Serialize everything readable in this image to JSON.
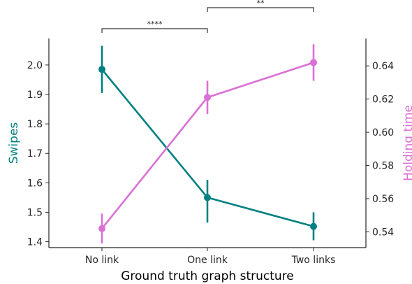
{
  "chart_data": {
    "type": "line",
    "xlabel": "Ground truth graph structure",
    "categories": [
      "No link",
      "One link",
      "Two links"
    ],
    "grid": false,
    "legend": "none",
    "series": [
      {
        "axis": "left",
        "label": "Swipes",
        "color": "#008080",
        "values": [
          1.985,
          1.55,
          1.452
        ],
        "ci_low": [
          1.905,
          1.465,
          1.405
        ],
        "ci_high": [
          2.065,
          1.61,
          1.5
        ]
      },
      {
        "axis": "right",
        "label": "Holding time",
        "color": "#da70d6",
        "values": [
          0.542,
          0.621,
          0.642
        ],
        "ci_low": [
          0.533,
          0.611,
          0.631
        ],
        "ci_high": [
          0.551,
          0.631,
          0.653
        ]
      }
    ],
    "y_left": {
      "label": "Swipes",
      "label_color": "#008080",
      "ylim": [
        1.38,
        2.09
      ],
      "ticks": [
        1.4,
        1.5,
        1.6,
        1.7,
        1.8,
        1.9,
        2.0
      ],
      "tick_labels": [
        "1.4",
        "1.5",
        "1.6",
        "1.7",
        "1.8",
        "1.9",
        "2.0"
      ]
    },
    "y_right": {
      "label": "Holding time",
      "label_color": "#da70d6",
      "ylim": [
        0.5305,
        0.6565
      ],
      "ticks": [
        0.54,
        0.56,
        0.58,
        0.6,
        0.62,
        0.64
      ],
      "tick_labels": [
        "0.54",
        "0.56",
        "0.58",
        "0.60",
        "0.62",
        "0.64"
      ]
    },
    "annotations": [
      {
        "from": "No link",
        "to": "One link",
        "text": "****",
        "level": 1
      },
      {
        "from": "One link",
        "to": "Two links",
        "text": "**",
        "level": 2
      }
    ]
  }
}
